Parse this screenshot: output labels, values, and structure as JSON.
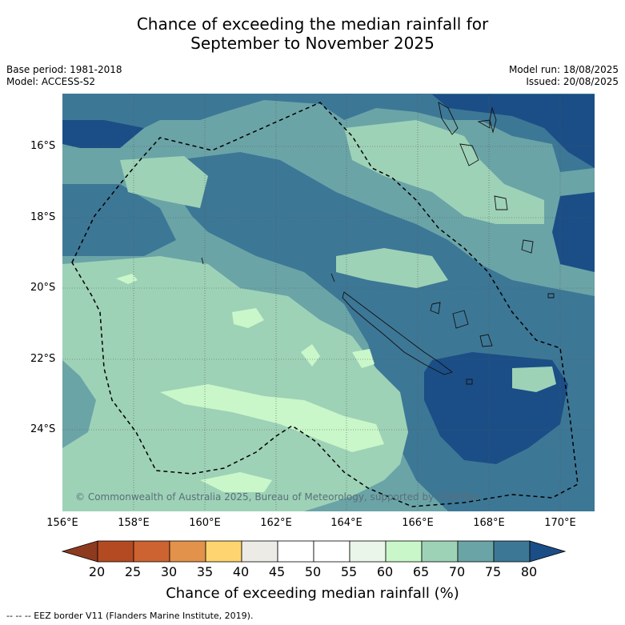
{
  "title": {
    "line1": "Chance of exceeding the median rainfall for",
    "line2": "September to November 2025"
  },
  "meta": {
    "base_period": "Base period: 1981-2018",
    "model": "Model: ACCESS-S2",
    "model_run": "Model run: 18/08/2025",
    "issued": "Issued: 20/08/2025"
  },
  "map": {
    "copyright": "© Commonwealth of Australia 2025, Bureau of Meteorology, supported by COSPPac",
    "lat_labels": [
      "16°S",
      "18°S",
      "20°S",
      "22°S",
      "24°S"
    ],
    "lon_labels": [
      "156°E",
      "158°E",
      "160°E",
      "162°E",
      "164°E",
      "166°E",
      "168°E",
      "170°E"
    ]
  },
  "colorbar": {
    "title": "Chance of exceeding median rainfall (%)",
    "ticks": [
      "20",
      "25",
      "30",
      "35",
      "40",
      "45",
      "50",
      "55",
      "60",
      "65",
      "70",
      "75",
      "80"
    ],
    "colors": [
      "#8e3a1f",
      "#b44a22",
      "#cc6331",
      "#e2924a",
      "#fdd46f",
      "#ecebe6",
      "#ffffff",
      "#ffffff",
      "#e9f6e9",
      "#c9f7c9",
      "#9ed2b7",
      "#6ba4a7",
      "#3d7796",
      "#1b4e86"
    ]
  },
  "footer": "-- -- -- EEZ border V11 (Flanders Marine Institute, 2019)."
}
